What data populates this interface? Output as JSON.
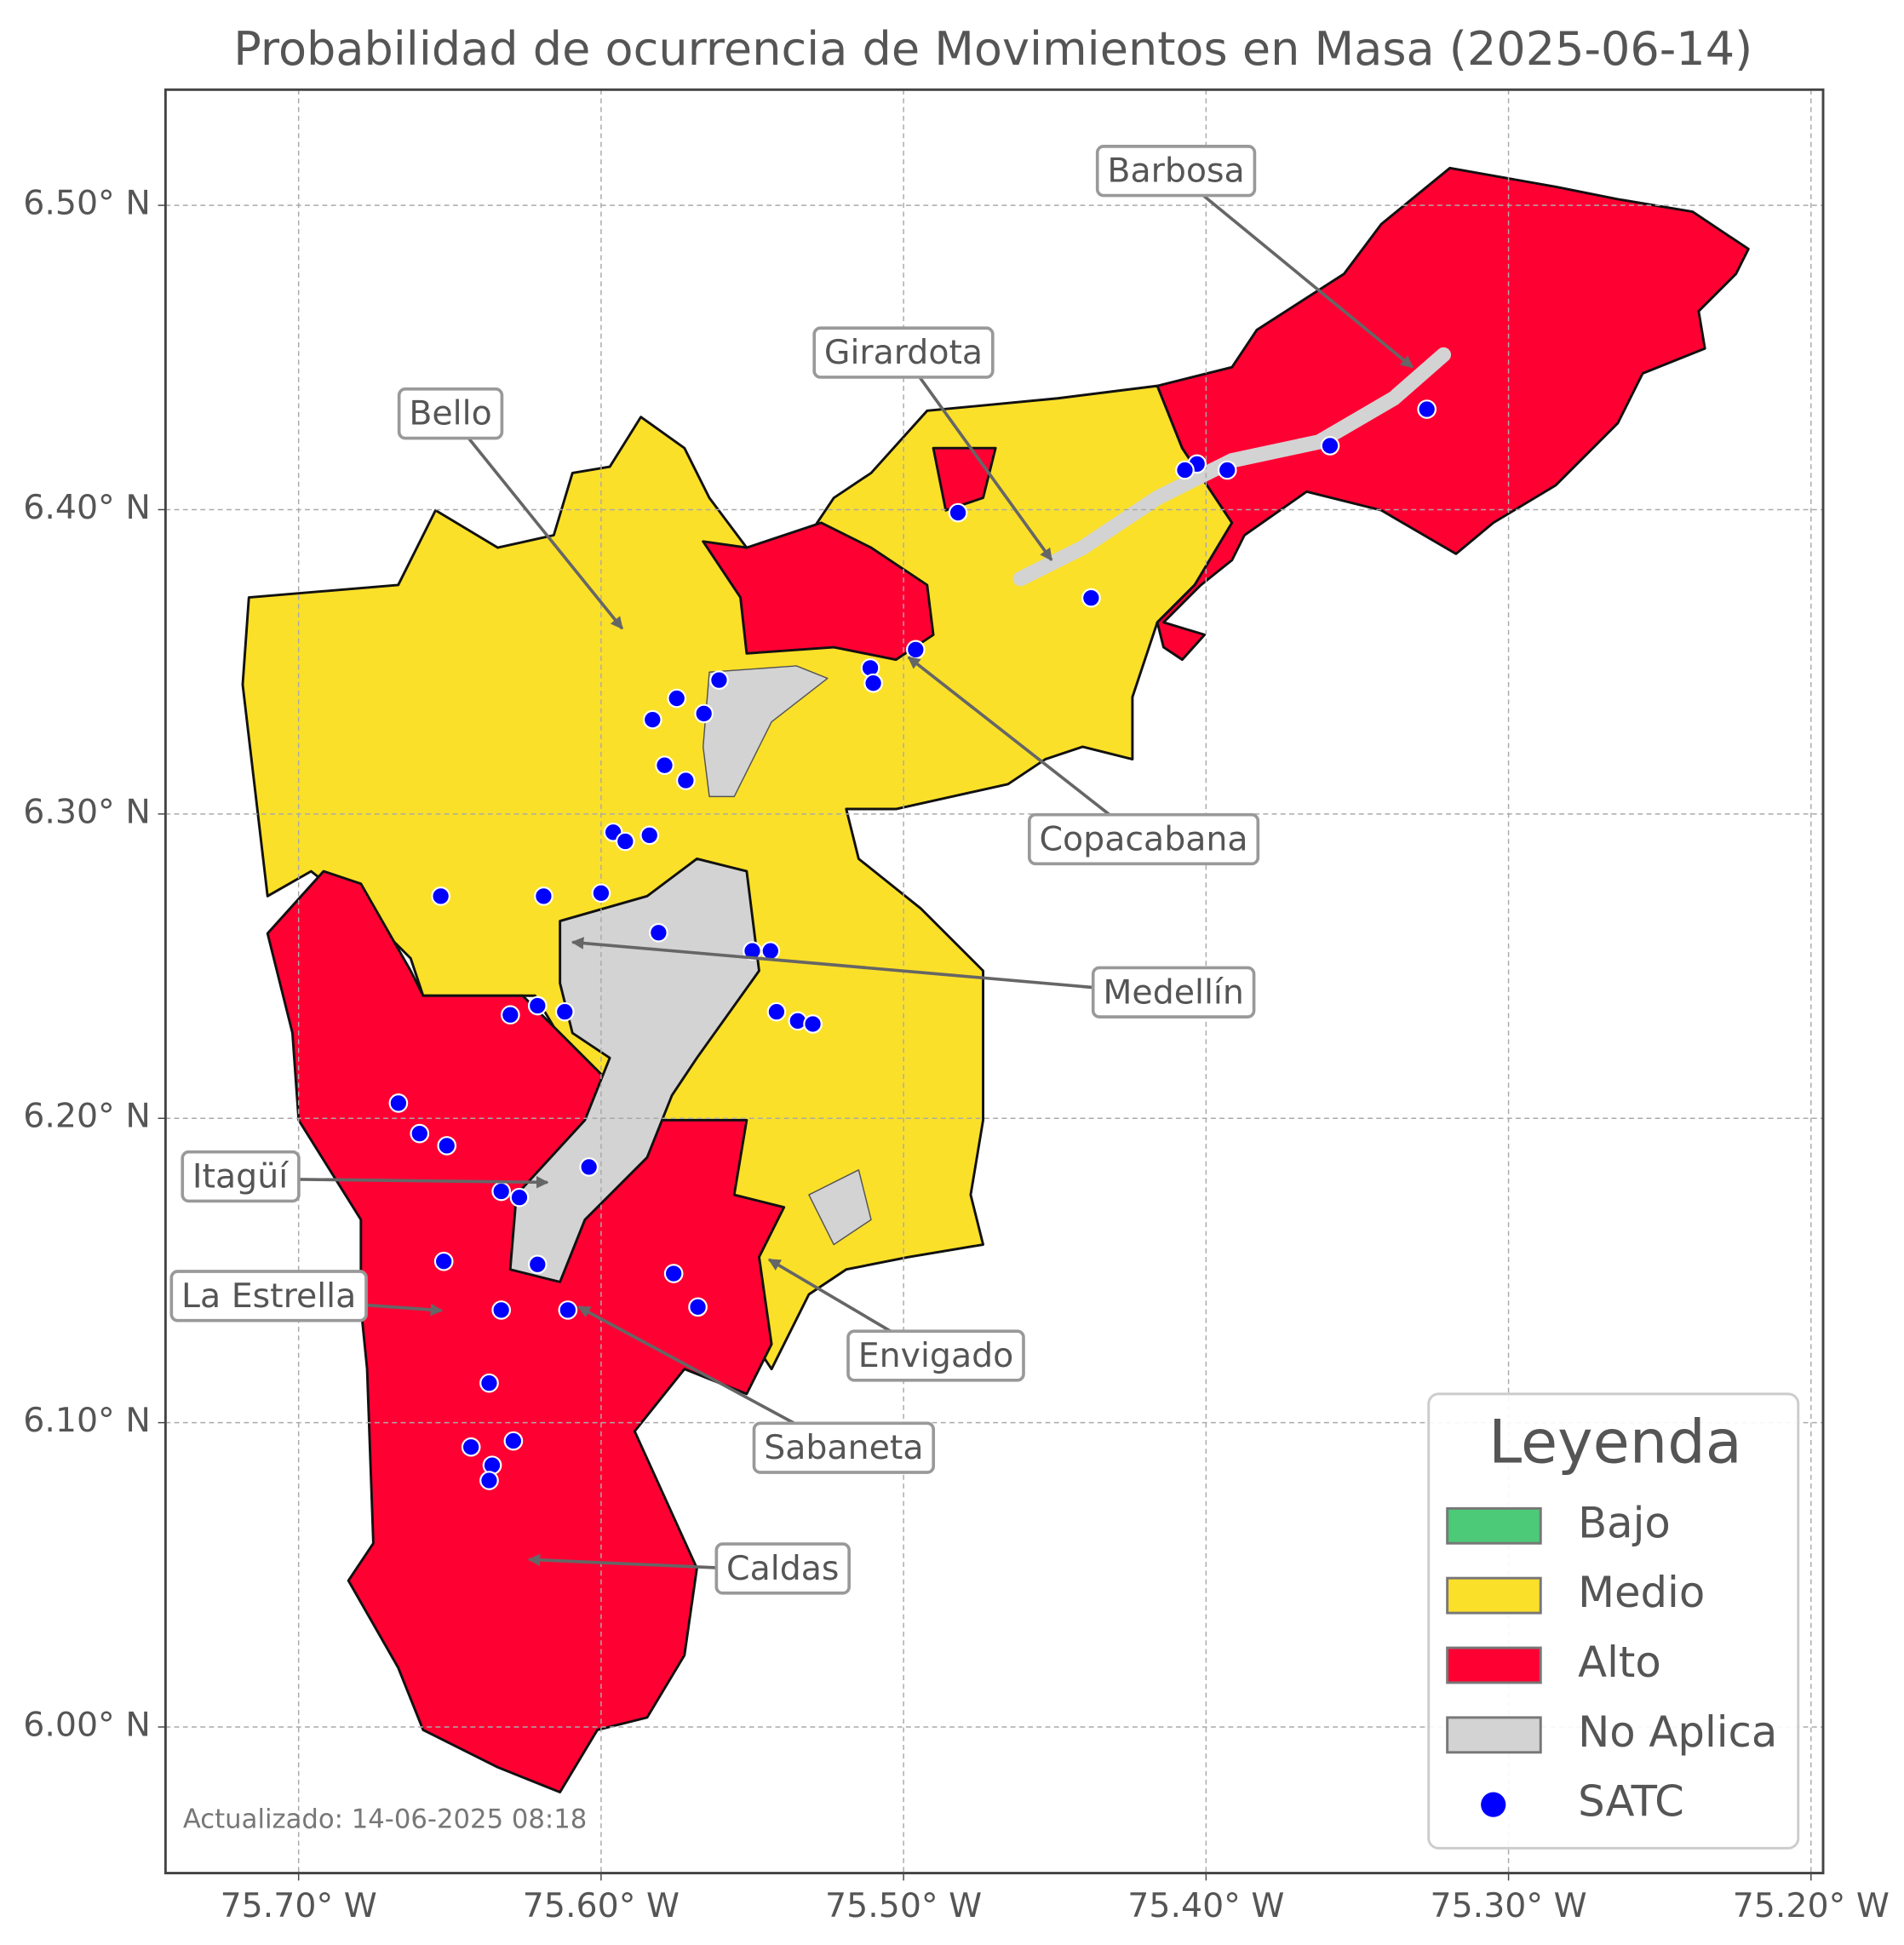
{
  "chart_data": {
    "type": "map",
    "title": "Probabilidad de ocurrencia de Movimientos en Masa (2025-06-14)",
    "xlim": [
      -75.744,
      -75.196
    ],
    "ylim": [
      5.952,
      6.538
    ],
    "xticks": [
      {
        "value": -75.7,
        "label": "75.70° W"
      },
      {
        "value": -75.6,
        "label": "75.60° W"
      },
      {
        "value": -75.5,
        "label": "75.50° W"
      },
      {
        "value": -75.4,
        "label": "75.40° W"
      },
      {
        "value": -75.3,
        "label": "75.30° W"
      },
      {
        "value": -75.2,
        "label": "75.20° W"
      }
    ],
    "yticks": [
      {
        "value": 6.0,
        "label": "6.00° N"
      },
      {
        "value": 6.1,
        "label": "6.10° N"
      },
      {
        "value": 6.2,
        "label": "6.20° N"
      },
      {
        "value": 6.3,
        "label": "6.30° N"
      },
      {
        "value": 6.4,
        "label": "6.40° N"
      },
      {
        "value": 6.5,
        "label": "6.50° N"
      }
    ],
    "grid": true,
    "annotations": [
      "Barbosa",
      "Girardota",
      "Bello",
      "Copacabana",
      "Medellín",
      "Itagüí",
      "La Estrella",
      "Envigado",
      "Sabaneta",
      "Caldas"
    ],
    "footnote": "Actualizado: 14-06-2025 08:18",
    "legend": {
      "title": "Leyenda",
      "position": "lower right",
      "items": [
        {
          "label": "Bajo",
          "color": "#4cca77"
        },
        {
          "label": "Medio",
          "color": "#fbe029"
        },
        {
          "label": "Alto",
          "color": "#ff0033"
        },
        {
          "label": "No Aplica",
          "color": "#d3d3d3"
        }
      ]
    },
    "satc": {
      "name": "SATC",
      "color": "#0000ff",
      "lon": [
        -75.327,
        -75.359,
        -75.393,
        -75.403,
        -75.407,
        -75.482,
        -75.438,
        -75.496,
        -75.511,
        -75.51,
        -75.561,
        -75.575,
        -75.566,
        -75.583,
        -75.579,
        -75.572,
        -75.596,
        -75.592,
        -75.584,
        -75.653,
        -75.619,
        -75.6,
        -75.581,
        -75.55,
        -75.544,
        -75.542,
        -75.535,
        -75.53,
        -75.63,
        -75.621,
        -75.612,
        -75.667,
        -75.66,
        -75.651,
        -75.604,
        -75.633,
        -75.627,
        -75.652,
        -75.621,
        -75.576,
        -75.568,
        -75.633,
        -75.611,
        -75.637,
        -75.643,
        -75.629,
        -75.636,
        -75.637
      ],
      "lat": [
        6.433,
        6.421,
        6.413,
        6.415,
        6.413,
        6.399,
        6.371,
        6.354,
        6.348,
        6.343,
        6.344,
        6.338,
        6.333,
        6.331,
        6.316,
        6.311,
        6.294,
        6.291,
        6.293,
        6.273,
        6.273,
        6.274,
        6.261,
        6.255,
        6.255,
        6.235,
        6.232,
        6.231,
        6.234,
        6.237,
        6.235,
        6.205,
        6.195,
        6.191,
        6.184,
        6.176,
        6.174,
        6.153,
        6.152,
        6.149,
        6.138,
        6.137,
        6.137,
        6.113,
        6.092,
        6.094,
        6.086,
        6.081
      ]
    }
  }
}
